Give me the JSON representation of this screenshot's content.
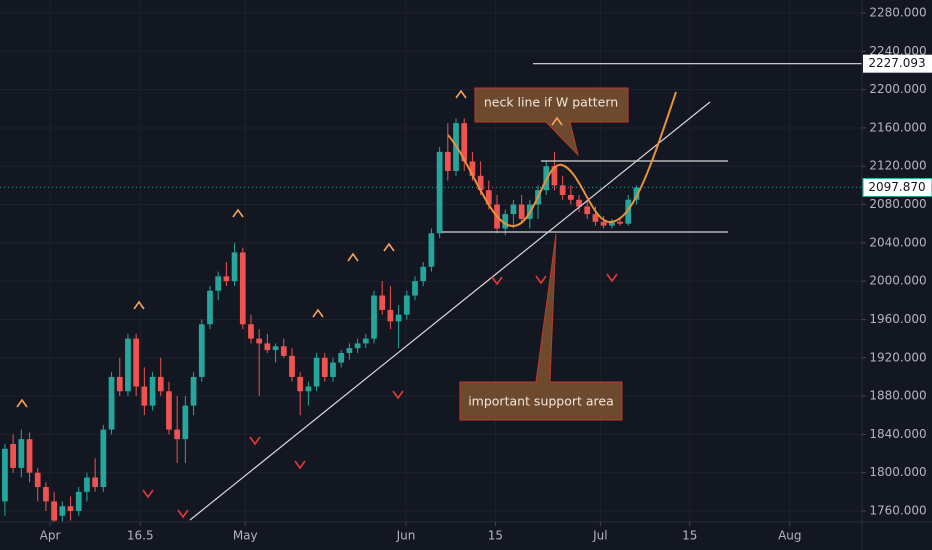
{
  "chart_data": {
    "type": "candlestick",
    "up_color": "#26a69a",
    "down_color": "#ef5350",
    "grid": true,
    "x": [
      0,
      1,
      2,
      3,
      4,
      5,
      6,
      7,
      8,
      9,
      10,
      11,
      12,
      13,
      14,
      15,
      16,
      17,
      18,
      19,
      20,
      21,
      22,
      23,
      24,
      25,
      26,
      27,
      28,
      29,
      30,
      31,
      32,
      33,
      34,
      35,
      36,
      37,
      38,
      39,
      40,
      41,
      42,
      43,
      44,
      45,
      46,
      47,
      48,
      49,
      50,
      51,
      52,
      53,
      54,
      55,
      56,
      57,
      58,
      59,
      60,
      61,
      62,
      63,
      64,
      65,
      66,
      67,
      68,
      69,
      70,
      71,
      72,
      73,
      74,
      75,
      76,
      77
    ],
    "open": [
      1770,
      1830,
      1805,
      1835,
      1800,
      1785,
      1770,
      1755,
      1765,
      1760,
      1780,
      1795,
      1785,
      1845,
      1900,
      1885,
      1940,
      1890,
      1870,
      1900,
      1885,
      1845,
      1835,
      1870,
      1900,
      1955,
      1990,
      2005,
      2000,
      2030,
      1955,
      1940,
      1935,
      1928,
      1932,
      1922,
      1900,
      1885,
      1890,
      1920,
      1900,
      1915,
      1925,
      1930,
      1935,
      1940,
      1985,
      1970,
      1958,
      1965,
      1985,
      2000,
      2015,
      2050,
      2135,
      2115,
      2165,
      2125,
      2110,
      2095,
      2080,
      2055,
      2070,
      2080,
      2065,
      2080,
      2095,
      2120,
      2100,
      2090,
      2085,
      2078,
      2070,
      2062,
      2058,
      2062,
      2060,
      2085
    ],
    "high": [
      1830,
      1840,
      1845,
      1842,
      1805,
      1790,
      1780,
      1770,
      1775,
      1785,
      1800,
      1815,
      1850,
      1905,
      1920,
      1945,
      1945,
      1910,
      1905,
      1920,
      1895,
      1880,
      1880,
      1905,
      1960,
      1995,
      2010,
      2020,
      2040,
      2035,
      1965,
      1950,
      1945,
      1935,
      1940,
      1930,
      1905,
      1895,
      1925,
      1925,
      1920,
      1928,
      1935,
      1940,
      1945,
      1990,
      2000,
      1995,
      1975,
      1990,
      2005,
      2020,
      2055,
      2140,
      2165,
      2170,
      2170,
      2135,
      2125,
      2105,
      2090,
      2075,
      2085,
      2090,
      2085,
      2100,
      2125,
      2135,
      2110,
      2100,
      2090,
      2085,
      2078,
      2068,
      2065,
      2065,
      2090,
      2100
    ],
    "low": [
      1755,
      1800,
      1795,
      1790,
      1770,
      1760,
      1740,
      1745,
      1750,
      1755,
      1770,
      1780,
      1780,
      1840,
      1880,
      1880,
      1880,
      1860,
      1865,
      1880,
      1840,
      1810,
      1810,
      1860,
      1895,
      1950,
      1980,
      1995,
      1995,
      1950,
      1935,
      1880,
      1925,
      1915,
      1920,
      1895,
      1860,
      1870,
      1885,
      1895,
      1895,
      1910,
      1918,
      1925,
      1930,
      1935,
      1965,
      1950,
      1930,
      1960,
      1980,
      1995,
      2010,
      2045,
      2105,
      2110,
      2115,
      2105,
      2090,
      2075,
      2050,
      2048,
      2055,
      2060,
      2055,
      2065,
      2090,
      2095,
      2085,
      2080,
      2072,
      2065,
      2058,
      2055,
      2055,
      2058,
      2058,
      2080
    ],
    "close": [
      1825,
      1805,
      1835,
      1800,
      1785,
      1770,
      1750,
      1765,
      1760,
      1780,
      1795,
      1785,
      1845,
      1900,
      1885,
      1940,
      1890,
      1870,
      1900,
      1885,
      1845,
      1835,
      1870,
      1900,
      1955,
      1990,
      2005,
      2000,
      2030,
      1955,
      1940,
      1935,
      1928,
      1932,
      1922,
      1900,
      1885,
      1890,
      1920,
      1900,
      1915,
      1925,
      1930,
      1935,
      1940,
      1985,
      1970,
      1958,
      1965,
      1985,
      2000,
      2015,
      2050,
      2135,
      2115,
      2165,
      2125,
      2110,
      2095,
      2080,
      2055,
      2070,
      2080,
      2065,
      2080,
      2095,
      2120,
      2100,
      2090,
      2085,
      2078,
      2070,
      2062,
      2058,
      2062,
      2060,
      2085,
      2097.87
    ],
    "xlim": [
      -0.6,
      104.5
    ],
    "xticks": [
      {
        "value": 5.5,
        "label": "Apr"
      },
      16.5,
      {
        "value": 29.3,
        "label": "May"
      },
      {
        "value": 48.9,
        "label": "Jun"
      },
      {
        "value": 59.8,
        "label": "15"
      },
      {
        "value": 72.6,
        "label": "Jul"
      },
      {
        "value": 83.5,
        "label": "15"
      },
      {
        "value": 95.7,
        "label": "Aug"
      }
    ],
    "ylim": [
      1748.5,
      2293.6
    ],
    "yticks": [
      {
        "value": 1760,
        "label": "1760.000"
      },
      {
        "value": 1800,
        "label": "1800.000"
      },
      {
        "value": 1840,
        "label": "1840.000"
      },
      {
        "value": 1880,
        "label": "1880.000"
      },
      {
        "value": 1920,
        "label": "1920.000"
      },
      {
        "value": 1960,
        "label": "1960.000"
      },
      {
        "value": 2000,
        "label": "2000.000"
      },
      {
        "value": 2040,
        "label": "2040.000"
      },
      {
        "value": 2080,
        "label": "2080.000"
      },
      {
        "value": 2120,
        "label": "2120.000"
      },
      {
        "value": 2160,
        "label": "2160.000"
      },
      {
        "value": 2200,
        "label": "2200.000"
      },
      {
        "value": 2240,
        "label": "2240.000"
      },
      {
        "value": 2280,
        "label": "2280.000"
      }
    ],
    "last_price": {
      "value": 2097.87,
      "label": "2097.870"
    },
    "target_line": 2227.093,
    "annotations": [
      "neck line if W pattern",
      "important support area"
    ]
  }
}
